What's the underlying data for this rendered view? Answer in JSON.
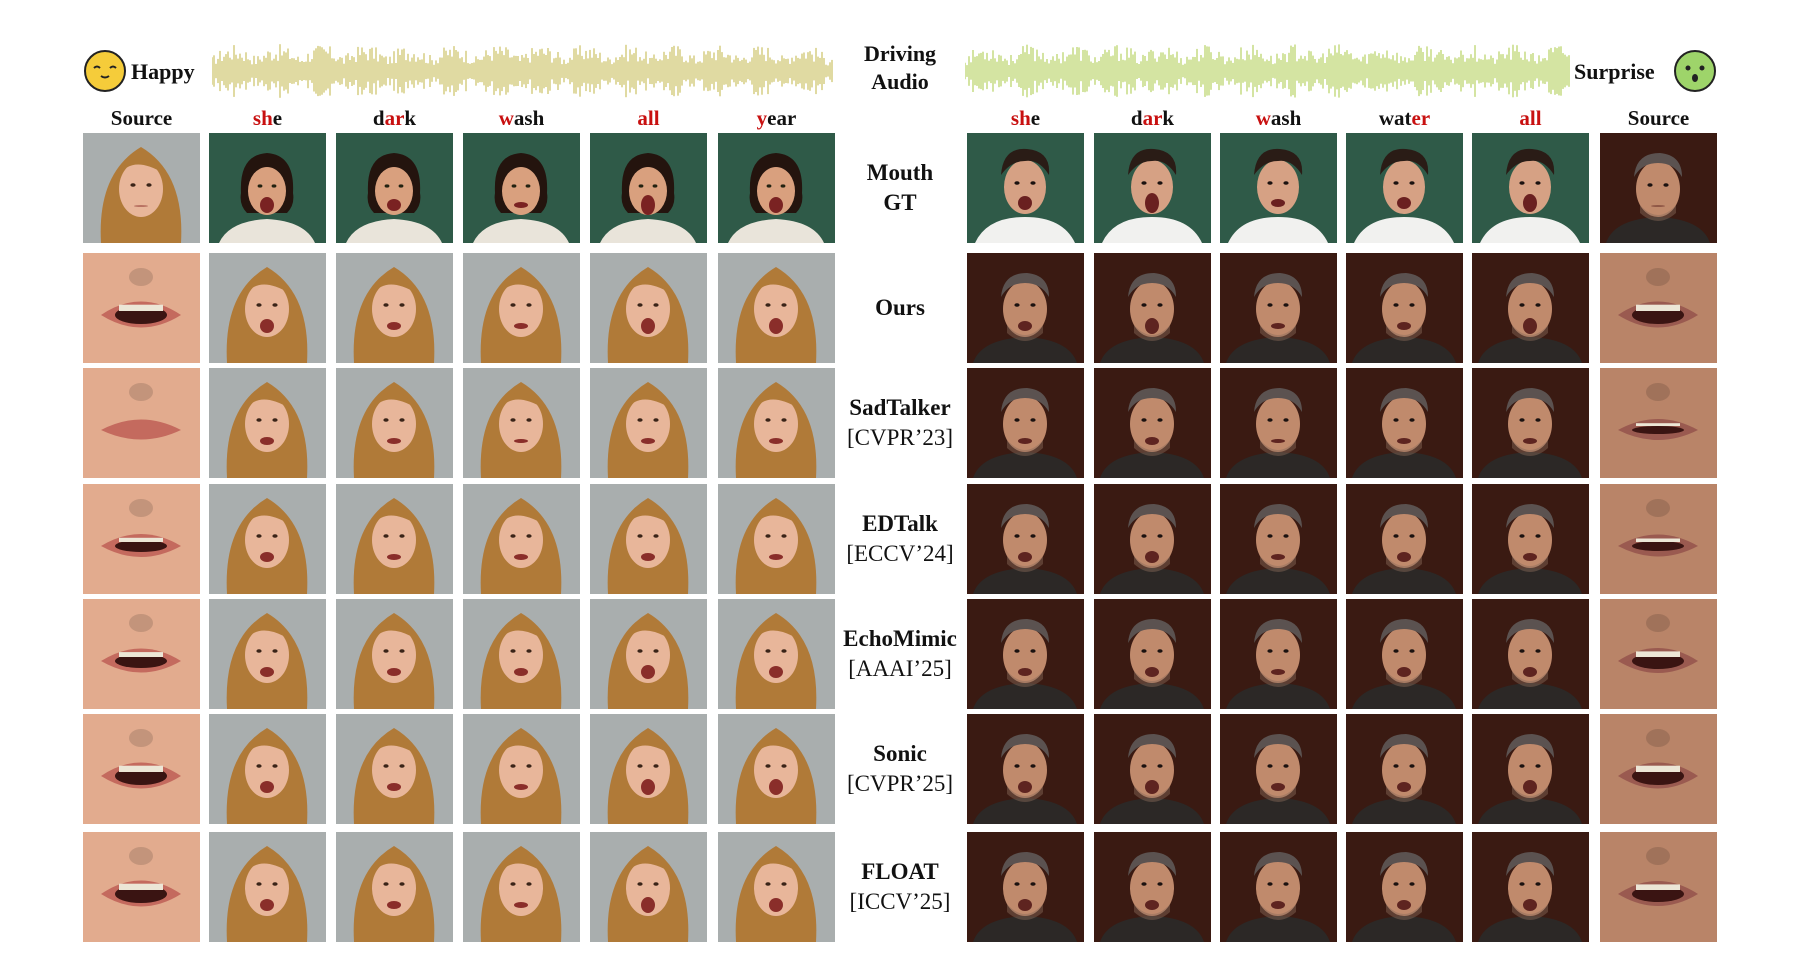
{
  "left": {
    "emotion": {
      "label": "Happy",
      "icon": "happy-emoji-icon",
      "color": "#f5cc3a"
    },
    "columns": [
      {
        "name": "source",
        "text": "Source",
        "pre": "",
        "hl": "",
        "post": ""
      },
      {
        "name": "she",
        "text": "",
        "pre": "",
        "hl": "sh",
        "post": "e"
      },
      {
        "name": "dark",
        "text": "",
        "pre": "d",
        "hl": "ar",
        "post": "k"
      },
      {
        "name": "wash",
        "text": "",
        "pre": "",
        "hl": "w",
        "post": "ash"
      },
      {
        "name": "all",
        "text": "",
        "pre": "",
        "hl": "all",
        "post": ""
      },
      {
        "name": "year",
        "text": "",
        "pre": "",
        "hl": "y",
        "post": "ear"
      }
    ]
  },
  "right": {
    "emotion": {
      "label": "Surprise",
      "icon": "surprise-emoji-icon",
      "color": "#9ed46a"
    },
    "columns": [
      {
        "name": "she",
        "text": "",
        "pre": "",
        "hl": "sh",
        "post": "e"
      },
      {
        "name": "dark",
        "text": "",
        "pre": "d",
        "hl": "ar",
        "post": "k"
      },
      {
        "name": "wash",
        "text": "",
        "pre": "",
        "hl": "w",
        "post": "ash"
      },
      {
        "name": "water",
        "text": "",
        "pre": "wat",
        "hl": "er",
        "post": ""
      },
      {
        "name": "all",
        "text": "",
        "pre": "",
        "hl": "all",
        "post": ""
      },
      {
        "name": "source",
        "text": "Source",
        "pre": "",
        "hl": "",
        "post": ""
      }
    ]
  },
  "center_header": {
    "line1": "Driving",
    "line2": "Audio"
  },
  "rows": [
    {
      "key": "mouth-gt",
      "method": "Mouth",
      "venue": "GT",
      "venue_bold": true
    },
    {
      "key": "ours",
      "method": "Ours",
      "venue": "",
      "venue_bold": false
    },
    {
      "key": "sadtalker",
      "method": "SadTalker",
      "venue": "[CVPR’23]",
      "venue_bold": false
    },
    {
      "key": "edtalk",
      "method": "EDTalk",
      "venue": "[ECCV’24]",
      "venue_bold": false
    },
    {
      "key": "echomimic",
      "method": "EchoMimic",
      "venue": "[AAAI’25]",
      "venue_bold": false
    },
    {
      "key": "sonic",
      "method": "Sonic",
      "venue": "[CVPR’25]",
      "venue_bold": false
    },
    {
      "key": "float",
      "method": "FLOAT",
      "venue": "[ICCV’25]",
      "venue_bold": false
    }
  ],
  "colors": {
    "highlight": "#c81010",
    "wave_left": "#d9d08a",
    "wave_right": "#c9de8a",
    "green_backdrop": "#2f5a48",
    "gray_backdrop": "#a9aeae",
    "dark_backdrop": "#3a1a12",
    "hair_blonde": "#b07a38",
    "skin_light": "#e8b69a",
    "skin_male": "#c08a6c",
    "hair_dark": "#2a1c16"
  }
}
